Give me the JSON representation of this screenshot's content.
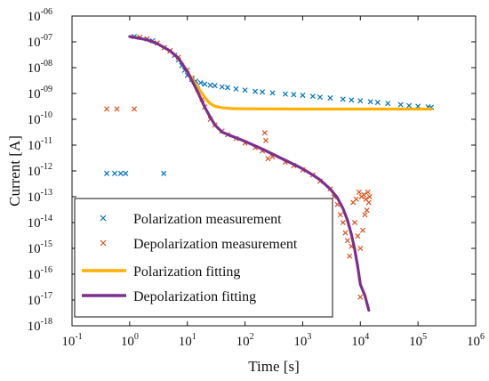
{
  "chart_data": {
    "type": "scatter",
    "xlabel": "Time [s]",
    "ylabel": "Current [A]",
    "xscale": "log",
    "yscale": "log",
    "xlim": [
      0.1,
      1000000
    ],
    "ylim": [
      1e-18,
      1e-06
    ],
    "x_ticks": [
      {
        "base": "10",
        "exp": "-1",
        "value": 0.1
      },
      {
        "base": "10",
        "exp": "0",
        "value": 1
      },
      {
        "base": "10",
        "exp": "1",
        "value": 10
      },
      {
        "base": "10",
        "exp": "2",
        "value": 100
      },
      {
        "base": "10",
        "exp": "3",
        "value": 1000
      },
      {
        "base": "10",
        "exp": "4",
        "value": 10000
      },
      {
        "base": "10",
        "exp": "5",
        "value": 100000
      },
      {
        "base": "10",
        "exp": "6",
        "value": 1000000
      }
    ],
    "y_ticks": [
      {
        "base": "10",
        "exp": "-06",
        "value": 1e-06
      },
      {
        "base": "10",
        "exp": "-07",
        "value": 1e-07
      },
      {
        "base": "10",
        "exp": "-08",
        "value": 1e-08
      },
      {
        "base": "10",
        "exp": "-09",
        "value": 1e-09
      },
      {
        "base": "10",
        "exp": "-10",
        "value": 1e-10
      },
      {
        "base": "10",
        "exp": "-11",
        "value": 1e-11
      },
      {
        "base": "10",
        "exp": "-12",
        "value": 1e-12
      },
      {
        "base": "10",
        "exp": "-13",
        "value": 1e-13
      },
      {
        "base": "10",
        "exp": "-14",
        "value": 1e-14
      },
      {
        "base": "10",
        "exp": "-15",
        "value": 1e-15
      },
      {
        "base": "10",
        "exp": "-16",
        "value": 1e-16
      },
      {
        "base": "10",
        "exp": "-17",
        "value": 1e-17
      },
      {
        "base": "10",
        "exp": "-18",
        "value": 1e-18
      }
    ],
    "legend_position": "bottom-left",
    "grid": false,
    "series": [
      {
        "name": "Polarization measurement",
        "kind": "scatter",
        "marker": "x",
        "color": "#0072BD",
        "points": [
          [
            0.4,
            8e-13
          ],
          [
            0.55,
            8e-13
          ],
          [
            0.7,
            8e-13
          ],
          [
            0.85,
            8e-13
          ],
          [
            3.9,
            8e-13
          ],
          [
            1.2,
            1.6e-07
          ],
          [
            1.5,
            1.5e-07
          ],
          [
            2,
            1.3e-07
          ],
          [
            2.5,
            1.1e-07
          ],
          [
            3,
            9e-08
          ],
          [
            4,
            6e-08
          ],
          [
            5,
            4.5e-08
          ],
          [
            6,
            3e-08
          ],
          [
            7,
            2e-08
          ],
          [
            8,
            1.2e-08
          ],
          [
            9,
            8e-09
          ],
          [
            10,
            5e-09
          ],
          [
            12,
            3.5e-09
          ],
          [
            14,
            3e-09
          ],
          [
            17,
            2.6e-09
          ],
          [
            20,
            2.3e-09
          ],
          [
            25,
            2.1e-09
          ],
          [
            30,
            2e-09
          ],
          [
            40,
            1.8e-09
          ],
          [
            50,
            1.7e-09
          ],
          [
            70,
            1.5e-09
          ],
          [
            100,
            1.35e-09
          ],
          [
            150,
            1.2e-09
          ],
          [
            200,
            1.15e-09
          ],
          [
            300,
            1.05e-09
          ],
          [
            500,
            9.5e-10
          ],
          [
            700,
            9e-10
          ],
          [
            1000,
            8.5e-10
          ],
          [
            1500,
            7.8e-10
          ],
          [
            2000,
            7.2e-10
          ],
          [
            3000,
            6.7e-10
          ],
          [
            5000,
            6e-10
          ],
          [
            7000,
            5.6e-10
          ],
          [
            10000,
            5.2e-10
          ],
          [
            15000,
            4.8e-10
          ],
          [
            20000,
            4.5e-10
          ],
          [
            30000,
            4.1e-10
          ],
          [
            50000,
            3.7e-10
          ],
          [
            70000,
            3.4e-10
          ],
          [
            100000,
            3.2e-10
          ],
          [
            150000,
            3e-10
          ],
          [
            170000,
            2.9e-10
          ]
        ]
      },
      {
        "name": "Depolarization measurement",
        "kind": "scatter",
        "marker": "x",
        "color": "#D95319",
        "points": [
          [
            0.4,
            2.5e-10
          ],
          [
            0.6,
            2.5e-10
          ],
          [
            1.2,
            2.5e-10
          ],
          [
            1.5,
            1.5e-07
          ],
          [
            2,
            1.3e-07
          ],
          [
            3,
            9e-08
          ],
          [
            4,
            6e-08
          ],
          [
            5,
            4.5e-08
          ],
          [
            7,
            2.5e-08
          ],
          [
            10,
            8e-09
          ],
          [
            12,
            4e-09
          ],
          [
            15,
            1.5e-09
          ],
          [
            18,
            6e-10
          ],
          [
            20,
            3e-10
          ],
          [
            25,
            1e-10
          ],
          [
            30,
            6e-11
          ],
          [
            40,
            3.5e-11
          ],
          [
            50,
            2.5e-11
          ],
          [
            70,
            1.8e-11
          ],
          [
            100,
            1.2e-11
          ],
          [
            150,
            8e-12
          ],
          [
            200,
            6e-12
          ],
          [
            220,
            3e-11
          ],
          [
            230,
            1.5e-11
          ],
          [
            250,
            3e-12
          ],
          [
            300,
            3.5e-12
          ],
          [
            500,
            2.2e-12
          ],
          [
            700,
            1.6e-12
          ],
          [
            1000,
            1.1e-12
          ],
          [
            1500,
            7e-13
          ],
          [
            2000,
            4e-13
          ],
          [
            3000,
            2e-13
          ],
          [
            3500,
            1e-13
          ],
          [
            4000,
            5e-14
          ],
          [
            4500,
            2e-14
          ],
          [
            5000,
            1e-14
          ],
          [
            5500,
            4e-15
          ],
          [
            6000,
            2e-15
          ],
          [
            6500,
            5e-16
          ],
          [
            7000,
            1.2e-15
          ],
          [
            7500,
            6e-14
          ],
          [
            8000,
            1e-14
          ],
          [
            8500,
            8e-14
          ],
          [
            9000,
            3e-15
          ],
          [
            9500,
            1.5e-13
          ],
          [
            10000,
            1e-15
          ],
          [
            10500,
            1e-13
          ],
          [
            11000,
            5e-15
          ],
          [
            11500,
            1.2e-13
          ],
          [
            12000,
            2e-14
          ],
          [
            12500,
            8e-14
          ],
          [
            13000,
            3e-14
          ],
          [
            13500,
            1.5e-13
          ],
          [
            14000,
            6e-14
          ],
          [
            14500,
            1e-13
          ],
          [
            10000,
            1.3e-17
          ]
        ]
      },
      {
        "name": "Polarization fitting",
        "kind": "line",
        "color": "#FFB000",
        "points": [
          [
            1,
            1.6e-07
          ],
          [
            2,
            1.2e-07
          ],
          [
            3,
            8.5e-08
          ],
          [
            5,
            4.5e-08
          ],
          [
            7,
            2.4e-08
          ],
          [
            10,
            7e-09
          ],
          [
            15,
            1.8e-09
          ],
          [
            20,
            7e-10
          ],
          [
            25,
            4e-10
          ],
          [
            30,
            3.2e-10
          ],
          [
            40,
            2.8e-10
          ],
          [
            60,
            2.6e-10
          ],
          [
            100,
            2.55e-10
          ],
          [
            1000,
            2.5e-10
          ],
          [
            10000,
            2.5e-10
          ],
          [
            100000,
            2.5e-10
          ],
          [
            170000,
            2.5e-10
          ]
        ]
      },
      {
        "name": "Depolarization fitting",
        "kind": "line",
        "color": "#7E2F8E",
        "points": [
          [
            1,
            1.6e-07
          ],
          [
            2,
            1.2e-07
          ],
          [
            3,
            8.5e-08
          ],
          [
            5,
            4.5e-08
          ],
          [
            7,
            2.3e-08
          ],
          [
            10,
            7e-09
          ],
          [
            15,
            1.2e-09
          ],
          [
            20,
            3e-10
          ],
          [
            25,
            1.2e-10
          ],
          [
            30,
            6e-11
          ],
          [
            40,
            3.2e-11
          ],
          [
            60,
            2.2e-11
          ],
          [
            100,
            1.4e-11
          ],
          [
            200,
            7e-12
          ],
          [
            400,
            3.3e-12
          ],
          [
            700,
            1.8e-12
          ],
          [
            1000,
            1.2e-12
          ],
          [
            1500,
            7e-13
          ],
          [
            2000,
            4.5e-13
          ],
          [
            3000,
            2e-13
          ],
          [
            4000,
            9e-14
          ],
          [
            5000,
            3.5e-14
          ],
          [
            6000,
            1.2e-14
          ],
          [
            7000,
            3.5e-15
          ],
          [
            8000,
            9e-16
          ],
          [
            9000,
            2e-16
          ],
          [
            10000,
            4e-17
          ],
          [
            12000,
            1.5e-17
          ],
          [
            14000,
            4e-18
          ]
        ]
      }
    ]
  }
}
